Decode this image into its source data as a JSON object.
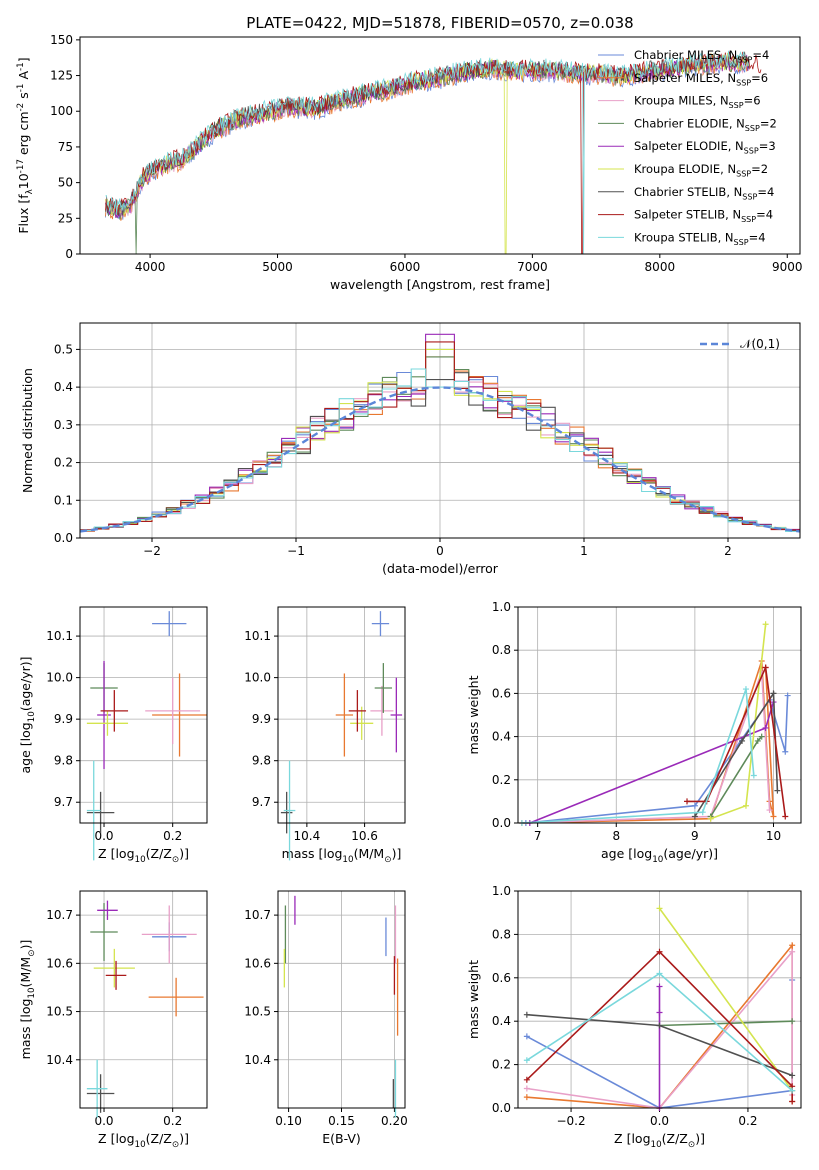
{
  "title": "PLATE=0422, MJD=51878, FIBERID=0570, z=0.038",
  "legend_labels": [
    "Chabrier MILES, N$_{SSP}$=4",
    "Salpeter MILES, N$_{SSP}$=6",
    "Kroupa MILES, N$_{SSP}$=6",
    "Chabrier ELODIE, N$_{SSP}$=2",
    "Salpeter ELODIE, N$_{SSP}$=3",
    "Kroupa ELODIE, N$_{SSP}$=2",
    "Chabrier STELIB, N$_{SSP}$=4",
    "Salpeter STELIB, N$_{SSP}$=4",
    "Kroupa STELIB, N$_{SSP}$=4"
  ],
  "colors": [
    "#6a8ad8",
    "#e87830",
    "#e8a0c8",
    "#5e8a5a",
    "#9a2ab8",
    "#d4e44e",
    "#505050",
    "#aa1a1a",
    "#7ad8dc"
  ],
  "chart_data": [
    {
      "id": "spectrum",
      "type": "line",
      "title": "PLATE=0422, MJD=51878, FIBERID=0570, z=0.038",
      "xlabel": "wavelength [Angstrom, rest frame]",
      "ylabel": "Flux [f$_\\lambda$10$^{-17}$ erg cm$^{-2}$ s$^{-1}$ A$^{-1}$]",
      "xlim": [
        3450,
        9100
      ],
      "ylim": [
        0,
        152
      ],
      "xticks": [
        4000,
        5000,
        6000,
        7000,
        8000,
        9000
      ],
      "yticks": [
        0,
        25,
        50,
        75,
        100,
        125,
        150
      ],
      "legend": "upper right",
      "continuum": {
        "x": [
          3650,
          3750,
          3850,
          3950,
          4050,
          4150,
          4250,
          4350,
          4500,
          4700,
          4900,
          5100,
          5300,
          5500,
          5700,
          5900,
          6100,
          6300,
          6500,
          6700,
          6900,
          7100,
          7300,
          7500,
          7700,
          7900,
          8100,
          8300,
          8500,
          8700,
          8800
        ],
        "y": [
          34,
          30,
          35,
          54,
          60,
          64,
          66,
          74,
          86,
          95,
          99,
          103,
          102,
          108,
          112,
          116,
          121,
          124,
          128,
          130,
          128,
          129,
          127,
          126,
          124,
          128,
          130,
          133,
          134,
          134,
          130
        ]
      },
      "dips": [
        [
          3890,
          0
        ],
        [
          6790,
          0
        ],
        [
          7390,
          0
        ]
      ]
    },
    {
      "id": "residuals",
      "type": "histogram",
      "xlabel": "(data-model)/error",
      "ylabel": "Normed distribution",
      "xlim": [
        -2.5,
        2.5
      ],
      "ylim": [
        0,
        0.57
      ],
      "xticks": [
        -2,
        -1,
        0,
        1,
        2
      ],
      "yticks": [
        0.0,
        0.1,
        0.2,
        0.3,
        0.4,
        0.5
      ],
      "reference_curve": "N(0,1)",
      "reference_label": "$\\mathcal{N}(0,1)$",
      "bin_width": 0.1,
      "peak_values": [
        0.5,
        0.48,
        0.4,
        0.48,
        0.54,
        0.5,
        0.42,
        0.52,
        0.4
      ]
    },
    {
      "id": "age-vs-Z",
      "type": "errorbar",
      "xlabel": "Z [log$_{10}$(Z/Z$_\\odot$)]",
      "ylabel": "age  [log$_{10}$(age/yr)]",
      "xlim": [
        -0.07,
        0.3
      ],
      "ylim": [
        9.65,
        10.17
      ],
      "xticks": [
        0.0,
        0.2
      ],
      "yticks": [
        9.7,
        9.8,
        9.9,
        10.0,
        10.1
      ],
      "points": [
        {
          "x": 0.19,
          "y": 10.13,
          "xerr": 0.05,
          "yerr": 0.03
        },
        {
          "x": 0.22,
          "y": 9.91,
          "xerr": 0.08,
          "yerr": 0.1
        },
        {
          "x": 0.2,
          "y": 9.92,
          "xerr": 0.08,
          "yerr": 0.08
        },
        {
          "x": 0.0,
          "y": 9.975,
          "xerr": 0.04,
          "yerr": 0.06
        },
        {
          "x": 0.0,
          "y": 9.91,
          "xerr": 0.02,
          "yerr": 0.13
        },
        {
          "x": 0.01,
          "y": 9.89,
          "xerr": 0.06,
          "yerr": 0.03
        },
        {
          "x": -0.01,
          "y": 9.675,
          "xerr": 0.04,
          "yerr": 0.05
        },
        {
          "x": 0.03,
          "y": 9.92,
          "xerr": 0.04,
          "yerr": 0.05
        },
        {
          "x": -0.03,
          "y": 9.68,
          "xerr": 0.02,
          "yerr": 0.12
        }
      ]
    },
    {
      "id": "age-vs-mass",
      "type": "errorbar",
      "xlabel": "mass [log$_{10}$(M/M$_\\odot$)]",
      "ylabel": "",
      "xlim": [
        10.3,
        10.74
      ],
      "ylim": [
        9.65,
        10.17
      ],
      "xticks": [
        10.4,
        10.6
      ],
      "yticks": [
        9.7,
        9.8,
        9.9,
        10.0,
        10.1
      ],
      "points": [
        {
          "x": 10.655,
          "y": 10.13,
          "xerr": 0.03,
          "yerr": 0.03
        },
        {
          "x": 10.53,
          "y": 9.91,
          "xerr": 0.03,
          "yerr": 0.1
        },
        {
          "x": 10.66,
          "y": 9.92,
          "xerr": 0.04,
          "yerr": 0.06
        },
        {
          "x": 10.665,
          "y": 9.975,
          "xerr": 0.03,
          "yerr": 0.06
        },
        {
          "x": 10.71,
          "y": 9.91,
          "xerr": 0.02,
          "yerr": 0.09
        },
        {
          "x": 10.59,
          "y": 9.89,
          "xerr": 0.04,
          "yerr": 0.04
        },
        {
          "x": 10.33,
          "y": 9.675,
          "xerr": 0.02,
          "yerr": 0.05
        },
        {
          "x": 10.575,
          "y": 9.92,
          "xerr": 0.03,
          "yerr": 0.05
        },
        {
          "x": 10.34,
          "y": 9.68,
          "xerr": 0.02,
          "yerr": 0.12
        }
      ]
    },
    {
      "id": "weight-vs-age",
      "type": "line",
      "xlabel": "age  [log$_{10}$(age/yr)]",
      "ylabel": "mass weight",
      "xlim": [
        6.75,
        10.35
      ],
      "ylim": [
        0,
        1.0
      ],
      "xticks": [
        7,
        8,
        9,
        10
      ],
      "yticks": [
        0.0,
        0.2,
        0.4,
        0.6,
        0.8,
        1.0
      ],
      "series": [
        {
          "x": [
            6.85,
            9.0,
            9.95,
            10.15,
            10.18
          ],
          "y": [
            0.0,
            0.08,
            0.57,
            0.33,
            0.59
          ]
        },
        {
          "x": [
            6.8,
            9.2,
            9.85,
            9.95,
            10.0,
            9.9
          ],
          "y": [
            0.0,
            0.02,
            0.75,
            0.1,
            0.03,
            0.72
          ]
        },
        {
          "x": [
            6.8,
            9.2,
            9.85,
            9.95
          ],
          "y": [
            0.0,
            0.03,
            0.7,
            0.06
          ]
        },
        {
          "x": [
            9.2,
            9.8,
            9.85
          ],
          "y": [
            0.03,
            0.38,
            0.4
          ]
        },
        {
          "x": [
            6.9,
            9.9,
            10.0
          ],
          "y": [
            0.0,
            0.44,
            0.56
          ]
        },
        {
          "x": [
            9.2,
            9.65,
            9.9
          ],
          "y": [
            0.02,
            0.08,
            0.92
          ]
        },
        {
          "x": [
            9.0,
            9.6,
            10.0,
            10.05
          ],
          "y": [
            0.03,
            0.38,
            0.6,
            0.15
          ]
        },
        {
          "x": [
            8.9,
            9.15,
            9.9,
            10.15
          ],
          "y": [
            0.1,
            0.1,
            0.72,
            0.03
          ]
        },
        {
          "x": [
            6.8,
            9.1,
            9.65,
            9.75
          ],
          "y": [
            0.0,
            0.05,
            0.62,
            0.22
          ]
        }
      ]
    },
    {
      "id": "mass-vs-Z",
      "type": "errorbar",
      "xlabel": "Z [log$_{10}$(Z/Z$_\\odot$)]",
      "ylabel": "mass [log$_{10}$(M/M$_\\odot$)]",
      "xlim": [
        -0.07,
        0.3
      ],
      "ylim": [
        10.3,
        10.75
      ],
      "xticks": [
        0.0,
        0.2
      ],
      "yticks": [
        10.4,
        10.5,
        10.6,
        10.7
      ],
      "points": [
        {
          "x": 0.19,
          "y": 10.655,
          "xerr": 0.05,
          "yerr": 0.03
        },
        {
          "x": 0.21,
          "y": 10.53,
          "xerr": 0.08,
          "yerr": 0.04
        },
        {
          "x": 0.19,
          "y": 10.66,
          "xerr": 0.08,
          "yerr": 0.06
        },
        {
          "x": 0.0,
          "y": 10.665,
          "xerr": 0.04,
          "yerr": 0.06
        },
        {
          "x": 0.01,
          "y": 10.71,
          "xerr": 0.03,
          "yerr": 0.02
        },
        {
          "x": 0.03,
          "y": 10.59,
          "xerr": 0.06,
          "yerr": 0.04
        },
        {
          "x": -0.01,
          "y": 10.33,
          "xerr": 0.04,
          "yerr": 0.04
        },
        {
          "x": 0.035,
          "y": 10.575,
          "xerr": 0.03,
          "yerr": 0.03
        },
        {
          "x": -0.02,
          "y": 10.34,
          "xerr": 0.03,
          "yerr": 0.06
        }
      ]
    },
    {
      "id": "mass-vs-ebv",
      "type": "errorbar",
      "xlabel": "E(B-V)",
      "ylabel": "",
      "xlim": [
        0.09,
        0.21
      ],
      "ylim": [
        10.3,
        10.75
      ],
      "xticks": [
        0.1,
        0.15,
        0.2
      ],
      "yticks": [
        10.4,
        10.5,
        10.6,
        10.7
      ],
      "points": [
        {
          "x": 0.192,
          "y": 10.655,
          "xerr": 0,
          "yerr": 0.04
        },
        {
          "x": 0.203,
          "y": 10.53,
          "xerr": 0,
          "yerr": 0.08
        },
        {
          "x": 0.201,
          "y": 10.66,
          "xerr": 0,
          "yerr": 0.06
        },
        {
          "x": 0.097,
          "y": 10.66,
          "xerr": 0,
          "yerr": 0.06
        },
        {
          "x": 0.106,
          "y": 10.71,
          "xerr": 0,
          "yerr": 0.03
        },
        {
          "x": 0.096,
          "y": 10.59,
          "xerr": 0,
          "yerr": 0.04
        },
        {
          "x": 0.199,
          "y": 10.33,
          "xerr": 0,
          "yerr": 0.03
        },
        {
          "x": 0.2,
          "y": 10.575,
          "xerr": 0,
          "yerr": 0.04
        },
        {
          "x": 0.201,
          "y": 10.34,
          "xerr": 0,
          "yerr": 0.06
        }
      ]
    },
    {
      "id": "weight-vs-Z",
      "type": "line",
      "xlabel": "Z [log$_{10}$(Z/Z$_\\odot$)]",
      "ylabel": "mass weight",
      "xlim": [
        -0.32,
        0.32
      ],
      "ylim": [
        0,
        1.0
      ],
      "xticks": [
        -0.2,
        0.0,
        0.2
      ],
      "yticks": [
        0.0,
        0.2,
        0.4,
        0.6,
        0.8,
        1.0
      ],
      "series": [
        {
          "x": [
            -0.3,
            0.0,
            0.3,
            0.3
          ],
          "y": [
            0.33,
            0.0,
            0.08,
            0.59
          ]
        },
        {
          "x": [
            -0.3,
            0.0,
            0.3,
            0.3
          ],
          "y": [
            0.05,
            0.0,
            0.75,
            0.03
          ]
        },
        {
          "x": [
            -0.3,
            0.0,
            0.3,
            0.3
          ],
          "y": [
            0.09,
            0.0,
            0.72,
            0.06
          ]
        },
        {
          "x": [
            0.0,
            0.3
          ],
          "y": [
            0.38,
            0.4
          ]
        },
        {
          "x": [
            0.0,
            0.0,
            0.0
          ],
          "y": [
            0.0,
            0.44,
            0.56
          ]
        },
        {
          "x": [
            0.0,
            0.3
          ],
          "y": [
            0.92,
            0.08
          ]
        },
        {
          "x": [
            -0.3,
            0.0,
            0.3
          ],
          "y": [
            0.43,
            0.38,
            0.15
          ]
        },
        {
          "x": [
            -0.3,
            0.0,
            0.3,
            0.3
          ],
          "y": [
            0.13,
            0.72,
            0.1,
            0.03
          ]
        },
        {
          "x": [
            -0.3,
            0.0,
            0.3
          ],
          "y": [
            0.22,
            0.62,
            0.08
          ]
        }
      ]
    }
  ]
}
